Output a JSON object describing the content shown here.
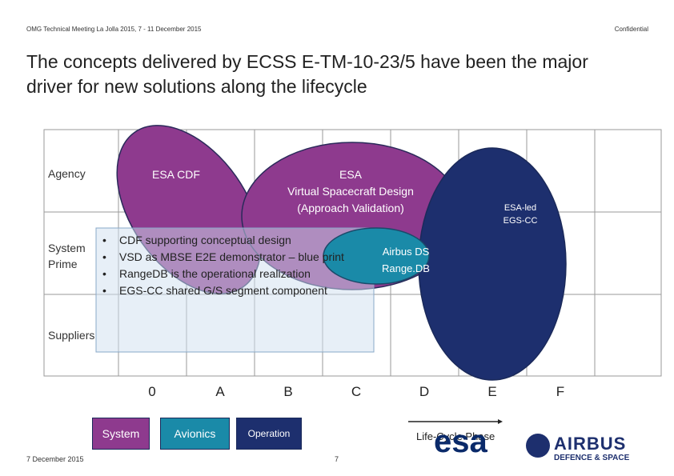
{
  "header": {
    "left": "OMG Technical Meeting La Jolla 2015, 7 - 11 December 2015",
    "right": "Confidential"
  },
  "title": [
    "The concepts delivered by ECSS E-TM-10-23/5 have been the major",
    "driver for new solutions along the lifecycle"
  ],
  "rows": [
    "Agency",
    "System Prime",
    "Suppliers"
  ],
  "ellipses": [
    {
      "lines": [
        "ESA CDF"
      ]
    },
    {
      "lines": [
        "ESA",
        "Virtual Spacecraft Design",
        "(Approach Validation)"
      ]
    },
    {
      "lines": [
        "ESA-led",
        "EGS-CC"
      ]
    },
    {
      "lines": [
        "Airbus DS",
        "Range.DB"
      ]
    }
  ],
  "bullets": [
    "CDF supporting conceptual design",
    "VSD as MBSE E2E demonstrator – blue print",
    "RangeDB is the operational realization",
    "EGS-CC shared G/S segment component"
  ],
  "phases": [
    "0",
    "A",
    "B",
    "C",
    "D",
    "E",
    "F"
  ],
  "legend": [
    "System",
    "Avionics",
    "Operation"
  ],
  "axis_label": "Life-Cycle Phase",
  "logos": {
    "esa": "esa",
    "airbus": "AIRBUS",
    "airbus_sub": "DEFENCE & SPACE"
  },
  "footer": {
    "date": "7 December 2015",
    "page": "7"
  }
}
